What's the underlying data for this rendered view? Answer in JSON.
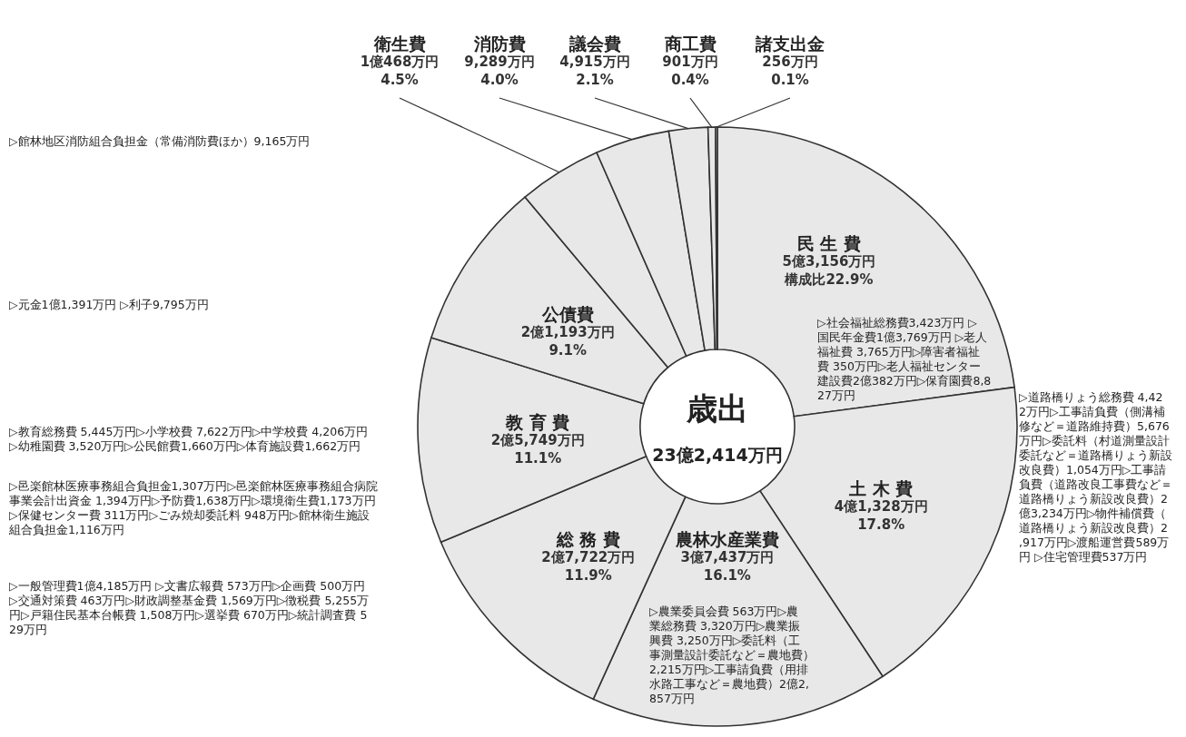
{
  "chart_data": {
    "type": "donut",
    "title": "歳出",
    "subtitle": "23億2,414万円",
    "categories": [
      "民 生 費",
      "土 木 費",
      "農林水産業費",
      "総 務 費",
      "教 育 費",
      "公債費",
      "衛生費",
      "消防費",
      "議会費",
      "商工費",
      "諸支出金"
    ],
    "values": [
      22.9,
      17.8,
      16.1,
      11.9,
      11.1,
      9.1,
      4.5,
      4.0,
      2.1,
      0.4,
      0.1
    ],
    "value_labels": [
      "5億3,156万円構成比22.9%",
      "4億1,328万円17.8%",
      "3億7,437万円16.1%",
      "2億7,722万円11.9%",
      "2億5,749万円11.1%",
      "2億1,193万円9.1%",
      "1億468万円4.5%",
      "9,289万円4.0%",
      "4,915万円2.1%",
      "901万円0.4%",
      "256万円0.1%"
    ],
    "colors": [
      "#e8e8e8",
      "#e8e8e8",
      "#e8e8e8",
      "#e8e8e8",
      "#e8e8e8",
      "#e8e8e8",
      "#e8e8e8",
      "#e8e8e8",
      "#e8e8e8",
      "#e8e8e8",
      "#e8e8e8"
    ],
    "annotations": [
      "▷社会福祉総務費3,423万円 ▷国民年金費1億3,769万円 ▷老人福祉費 3,765万円▷障害者福祉費 350万円▷老人福祉センター建設費2億382万円▷保育園費8,827万円",
      "▷道路橋りょう総務費 4,422万円▷工事請負費（側溝補修など＝道路維持費）5,676万円▷委託料（村道測量設計委託など＝道路橋りょう新設改良費）1,054万円▷工事請負費（道路改良工事費など＝道路橋りょう新設改良費）2億3,234万円▷物件補償費（道路橋りょう新設改良費）2,917万円▷渡船運営費589万円 ▷住宅管理費537万円",
      "▷農業委員会費 563万円▷農業総務費 3,320万円▷農業振興費 3,250万円▷委託料（工事測量設計委託など＝農地費）2,215万円▷工事請負費（用排水路工事など＝農地費）2億2,857万円",
      "▷一般管理費1億4,185万円 ▷文書広報費 573万円▷企画費 500万円▷交通対策費 463万円▷財政調整基金費 1,569万円▷徴税費 5,255万円▷戸籍住民基本台帳費 1,508万円▷選挙費 670万円▷統計調査費 529万円",
      "▷教育総務費 5,445万円▷小学校費 7,622万円▷中学校費 4,206万円▷幼稚園費 3,520万円▷公民館費1,660万円▷体育施設費1,662万円",
      "▷元金1億1,391万円 ▷利子9,795万円",
      "▷館林地区消防組合負担金（常備消防費ほか）9,165万円",
      "▷邑楽館林医療事務組合負担金1,307万円▷邑楽館林医療事務組合病院事業会計出資金 1,394万円▷予防費1,638万円▷環境衛生費1,173万円▷保健センター費 311万円▷ごみ焼却委託料 948万円▷館林衛生施設組合負担金1,116万円"
    ]
  }
}
